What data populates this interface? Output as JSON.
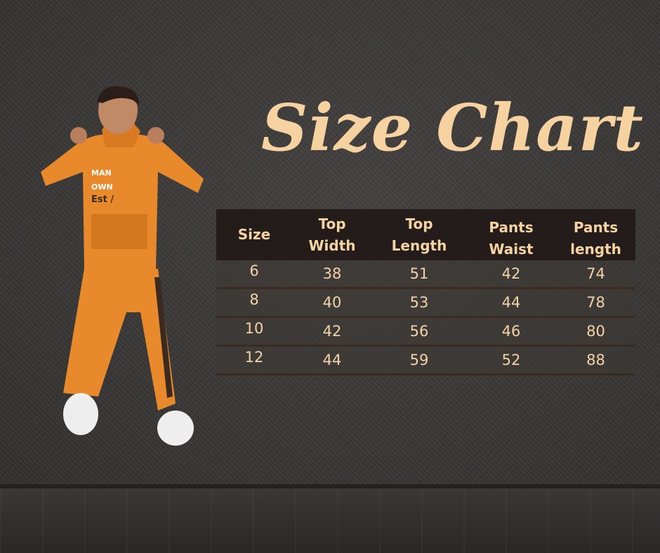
{
  "title": "Size Chart",
  "table": {
    "headers": [
      [
        "Size"
      ],
      [
        "Top",
        "Width"
      ],
      [
        "Top",
        "Length"
      ],
      [
        "Pants",
        "Waist"
      ],
      [
        "Pants",
        "length"
      ]
    ],
    "rows": [
      [
        "6",
        "38",
        "51",
        "42",
        "74"
      ],
      [
        "8",
        "40",
        "53",
        "44",
        "78"
      ],
      [
        "10",
        "42",
        "56",
        "46",
        "80"
      ],
      [
        "12",
        "44",
        "59",
        "52",
        "88"
      ]
    ]
  },
  "shirt_print": [
    "MAN",
    "OWN",
    "Est /"
  ],
  "colors": {
    "accent": "#f6d3a1",
    "header_bg": "#241c1a",
    "background": "#3c3a39",
    "outfit": "#e8892b"
  }
}
